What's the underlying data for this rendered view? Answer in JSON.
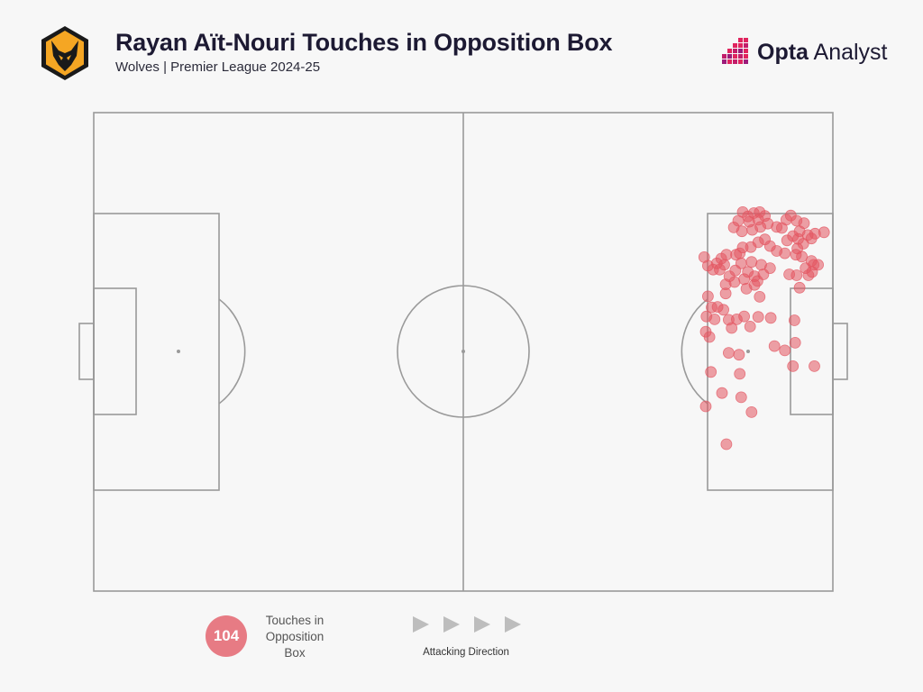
{
  "header": {
    "title": "Rayan Aït-Nouri Touches in Opposition Box",
    "subtitle": "Wolves | Premier League 2024-25",
    "crest_icon": "wolves-crest-icon",
    "brand_bold": "Opta",
    "brand_light": " Analyst"
  },
  "legend": {
    "count": "104",
    "count_label": "Touches in Opposition Box",
    "direction_label": "Attacking Direction",
    "direction_icon": "play-triangle-icon"
  },
  "colors": {
    "dot": "#e35561",
    "pitch_line": "#9a9a9a",
    "background": "#f7f7f7",
    "brand_accent": "#e0245e"
  },
  "chart_data": {
    "type": "scatter",
    "title": "Rayan Aït-Nouri Touches in Opposition Box",
    "subtitle": "Wolves | Premier League 2024-25",
    "pitch": "full pitch, attacking left to right, length 100 x width 100",
    "xlim": [
      0,
      100
    ],
    "ylim": [
      0,
      100
    ],
    "points": [
      [
        87.8,
        20.8
      ],
      [
        88.5,
        21.7
      ],
      [
        89.3,
        21.0
      ],
      [
        90.1,
        20.8
      ],
      [
        90.8,
        21.6
      ],
      [
        89.9,
        22.4
      ],
      [
        88.7,
        22.8
      ],
      [
        87.2,
        22.6
      ],
      [
        86.6,
        24.0
      ],
      [
        87.7,
        24.8
      ],
      [
        89.1,
        24.5
      ],
      [
        90.2,
        23.9
      ],
      [
        91.2,
        23.2
      ],
      [
        92.4,
        23.9
      ],
      [
        93.7,
        22.4
      ],
      [
        93.1,
        24.1
      ],
      [
        94.3,
        21.5
      ],
      [
        95.1,
        22.6
      ],
      [
        96.1,
        23.1
      ],
      [
        95.5,
        24.8
      ],
      [
        94.6,
        25.8
      ],
      [
        93.8,
        26.7
      ],
      [
        95.3,
        26.4
      ],
      [
        96.6,
        25.6
      ],
      [
        97.6,
        25.3
      ],
      [
        98.8,
        25.0
      ],
      [
        97.1,
        26.3
      ],
      [
        96.0,
        27.4
      ],
      [
        95.2,
        28.4
      ],
      [
        93.5,
        29.4
      ],
      [
        92.4,
        28.9
      ],
      [
        91.5,
        27.9
      ],
      [
        90.8,
        26.5
      ],
      [
        89.9,
        27.1
      ],
      [
        88.9,
        28.1
      ],
      [
        87.8,
        28.2
      ],
      [
        86.9,
        29.7
      ],
      [
        85.6,
        29.7
      ],
      [
        84.9,
        30.5
      ],
      [
        84.3,
        31.5
      ],
      [
        85.3,
        31.8
      ],
      [
        84.7,
        32.8
      ],
      [
        83.8,
        32.8
      ],
      [
        83.1,
        32.0
      ],
      [
        82.6,
        30.2
      ],
      [
        87.6,
        31.5
      ],
      [
        89.0,
        31.2
      ],
      [
        90.3,
        31.8
      ],
      [
        91.5,
        32.5
      ],
      [
        90.6,
        33.8
      ],
      [
        89.4,
        34.2
      ],
      [
        88.5,
        33.3
      ],
      [
        86.8,
        33.0
      ],
      [
        86.0,
        34.2
      ],
      [
        85.5,
        35.9
      ],
      [
        86.7,
        35.4
      ],
      [
        88.0,
        34.8
      ],
      [
        89.4,
        36.0
      ],
      [
        89.8,
        35.2
      ],
      [
        90.1,
        38.5
      ],
      [
        94.1,
        33.8
      ],
      [
        95.1,
        34.0
      ],
      [
        96.3,
        32.5
      ],
      [
        97.4,
        31.8
      ],
      [
        96.7,
        34.0
      ],
      [
        95.5,
        36.6
      ],
      [
        98.0,
        31.8
      ],
      [
        97.2,
        33.3
      ],
      [
        95.8,
        30.1
      ],
      [
        88.3,
        36.8
      ],
      [
        97.1,
        31.0
      ],
      [
        85.5,
        37.8
      ],
      [
        87.4,
        29.4
      ],
      [
        95.0,
        29.7
      ],
      [
        83.1,
        38.4
      ],
      [
        83.6,
        40.7
      ],
      [
        84.4,
        40.6
      ],
      [
        85.2,
        41.2
      ],
      [
        82.9,
        42.6
      ],
      [
        84.0,
        43.2
      ],
      [
        85.9,
        43.3
      ],
      [
        87.0,
        43.2
      ],
      [
        88.0,
        42.6
      ],
      [
        88.8,
        44.7
      ],
      [
        89.9,
        42.7
      ],
      [
        91.6,
        42.9
      ],
      [
        94.8,
        43.4
      ],
      [
        86.3,
        45.0
      ],
      [
        82.8,
        45.8
      ],
      [
        83.3,
        46.9
      ],
      [
        92.1,
        48.8
      ],
      [
        94.9,
        48.1
      ],
      [
        87.4,
        54.6
      ],
      [
        83.5,
        54.2
      ],
      [
        87.3,
        50.6
      ],
      [
        85.9,
        50.2
      ],
      [
        93.5,
        49.7
      ],
      [
        94.6,
        53.0
      ],
      [
        97.5,
        53.0
      ],
      [
        85.0,
        58.6
      ],
      [
        87.6,
        59.5
      ],
      [
        82.8,
        61.4
      ],
      [
        89.0,
        62.6
      ],
      [
        85.6,
        69.3
      ]
    ]
  }
}
